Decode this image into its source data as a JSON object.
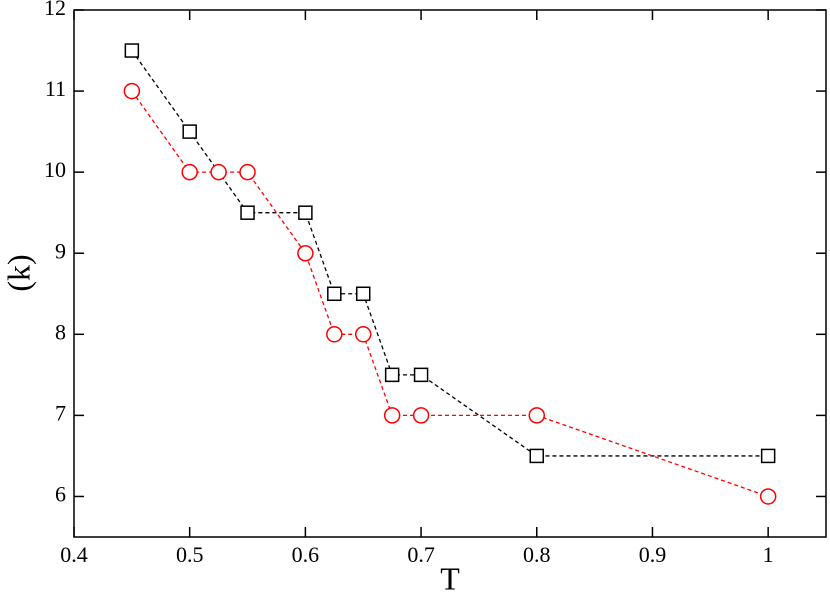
{
  "chart_data": {
    "type": "line",
    "x_label": "T",
    "y_label": "(k)",
    "xlim": [
      0.4,
      1.05
    ],
    "ylim": [
      5.5,
      12
    ],
    "xticks": [
      0.4,
      0.5,
      0.6,
      0.7,
      0.8,
      0.9,
      1
    ],
    "yticks": [
      6,
      7,
      8,
      9,
      10,
      11,
      12
    ],
    "grid": false,
    "series": [
      {
        "color": "#000000",
        "marker": "square",
        "x": [
          0.45,
          0.5,
          0.55,
          0.6,
          0.625,
          0.65,
          0.675,
          0.7,
          0.8,
          1.0
        ],
        "values": [
          11.5,
          10.5,
          9.5,
          9.5,
          8.5,
          8.5,
          7.5,
          7.5,
          6.5,
          6.5
        ]
      },
      {
        "color": "#ff0000",
        "marker": "circle",
        "x": [
          0.45,
          0.5,
          0.525,
          0.55,
          0.6,
          0.625,
          0.65,
          0.675,
          0.7,
          0.8,
          1.0
        ],
        "values": [
          11,
          10,
          10,
          10,
          9,
          8,
          8,
          7,
          7,
          7,
          6
        ]
      }
    ]
  }
}
